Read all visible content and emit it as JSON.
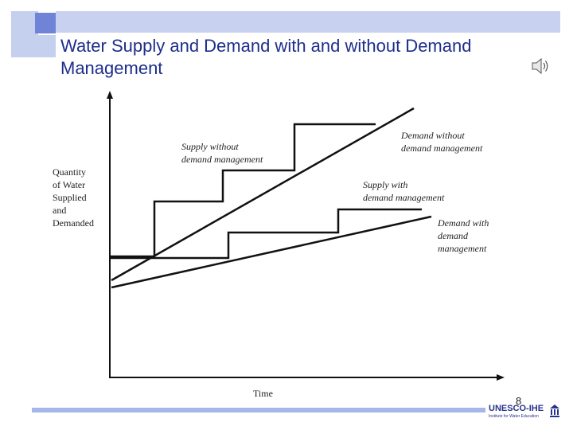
{
  "slide": {
    "title": "Water Supply and Demand with and without Demand Management",
    "page_number": "8"
  },
  "diagram": {
    "y_axis_label": [
      "Quantity",
      "of Water",
      "Supplied",
      "and",
      "Demanded"
    ],
    "x_axis_label": "Time",
    "annotations": {
      "supply_without": [
        "Supply without",
        "demand management"
      ],
      "demand_without": [
        "Demand without",
        "demand management"
      ],
      "supply_with": [
        "Supply with",
        "demand management"
      ],
      "demand_with": [
        "Demand with",
        "demand",
        "management"
      ]
    }
  },
  "logo": {
    "name": "UNESCO-IHE",
    "subtitle": "Institute for Water Education"
  },
  "icons": {
    "speaker": "speaker-icon",
    "logo_emblem": "temple-icon"
  },
  "colors": {
    "title": "#1d2e8c",
    "accent_light": "#c8d1f0",
    "accent_dark": "#6f84d6"
  }
}
